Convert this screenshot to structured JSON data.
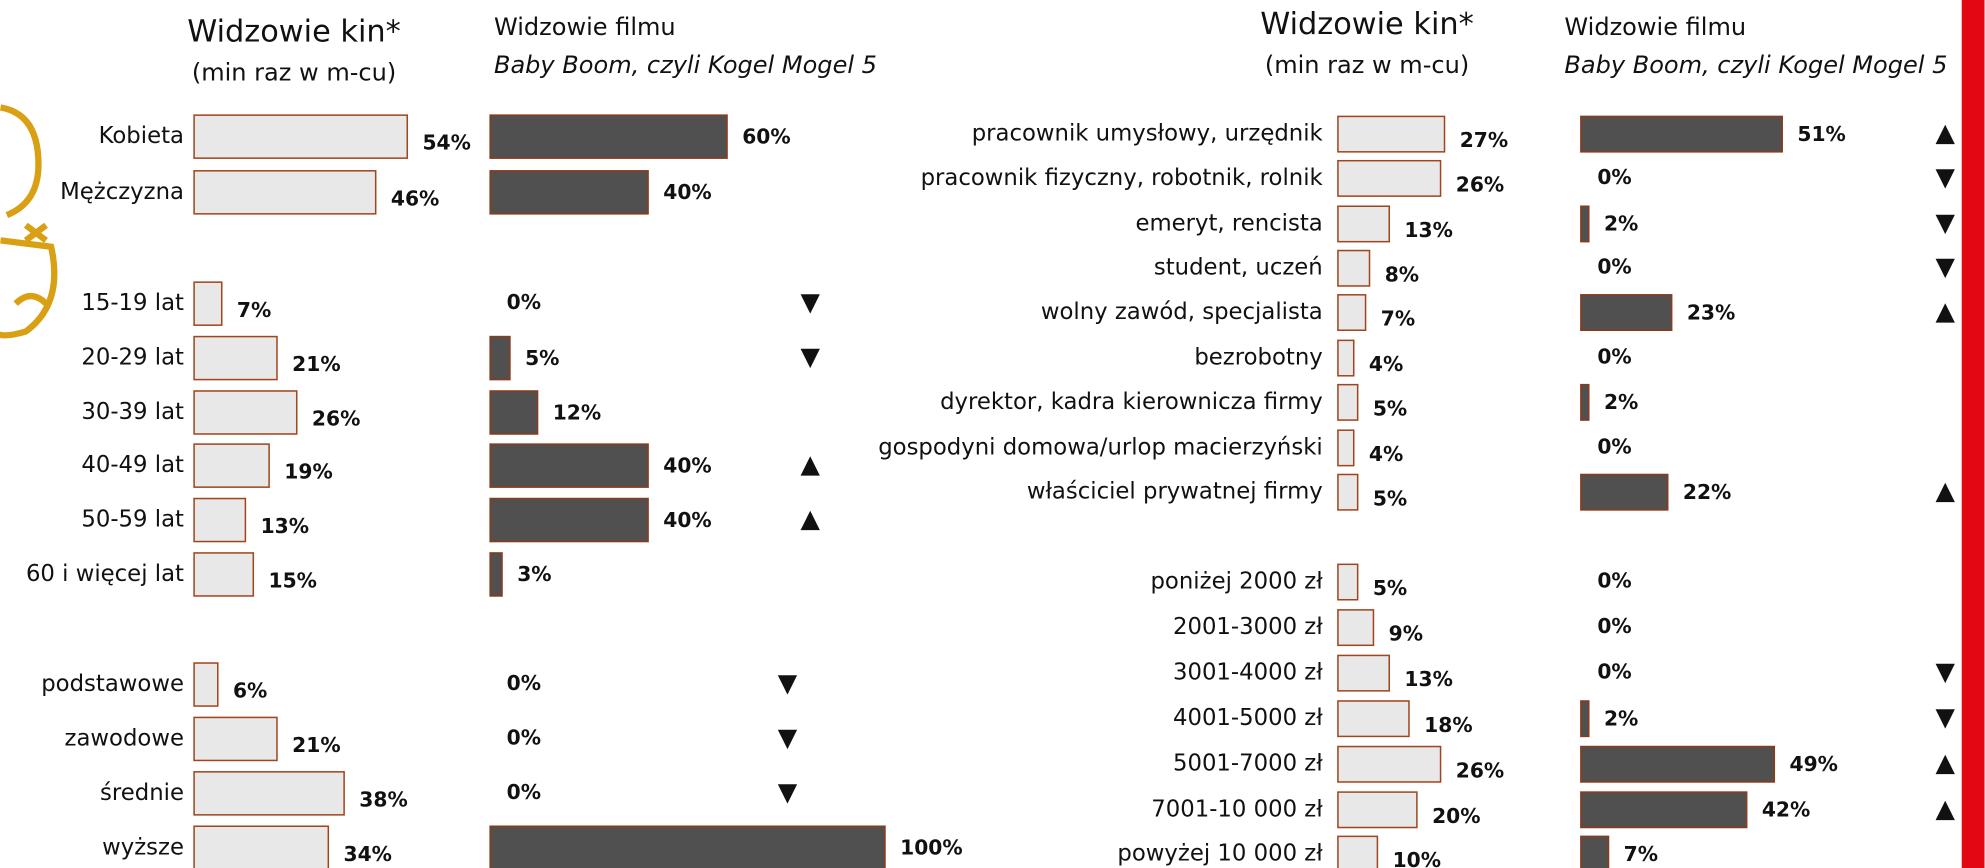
{
  "left": {
    "header": {
      "cinema_title": "Widzowie kin*",
      "cinema_subtitle": "(min raz w m-cu)",
      "film_title": "Widzowie filmu",
      "film_name": "Baby Boom, czyli Kogel Mogel 5"
    },
    "rows": [
      {
        "label": "Kobieta",
        "cinema": 54,
        "cinema_label": "54%",
        "film": 60,
        "film_label": "60%"
      },
      {
        "label": "Mężczyzna",
        "cinema": 46,
        "cinema_label": "46%",
        "film": 40,
        "film_label": "40%"
      },
      {
        "label": "15-19 lat",
        "cinema": 7,
        "cinema_label": "7%",
        "film": 0,
        "film_label": "0%",
        "arrow": "▼"
      },
      {
        "label": "20-29 lat",
        "cinema": 21,
        "cinema_label": "21%",
        "film": 5,
        "film_label": "5%",
        "arrow": "▼"
      },
      {
        "label": "30-39 lat",
        "cinema": 26,
        "cinema_label": "26%",
        "film": 12,
        "film_label": "12%"
      },
      {
        "label": "40-49 lat",
        "cinema": 19,
        "cinema_label": "19%",
        "film": 40,
        "film_label": "40%",
        "arrow": "▲"
      },
      {
        "label": "50-59 lat",
        "cinema": 13,
        "cinema_label": "13%",
        "film": 40,
        "film_label": "40%",
        "arrow": "▲"
      },
      {
        "label": "60 i więcej lat",
        "cinema": 15,
        "cinema_label": "15%",
        "film": 3,
        "film_label": "3%"
      },
      {
        "label": "podstawowe",
        "cinema": 6,
        "cinema_label": "6%",
        "film": 0,
        "film_label": "0%",
        "arrow": "▼"
      },
      {
        "label": "zawodowe",
        "cinema": 21,
        "cinema_label": "21%",
        "film": 0,
        "film_label": "0%",
        "arrow": "▼"
      },
      {
        "label": "średnie",
        "cinema": 38,
        "cinema_label": "38%",
        "film": 0,
        "film_label": "0%",
        "arrow": "▼"
      },
      {
        "label": "wyższe",
        "cinema": 34,
        "cinema_label": "34%",
        "film": 100,
        "film_label": "100%"
      }
    ]
  },
  "right": {
    "header": {
      "cinema_title": "Widzowie kin*",
      "cinema_subtitle": "(min raz w m-cu)",
      "film_title": "Widzowie filmu",
      "film_name": "Baby Boom, czyli Kogel Mogel 5"
    },
    "rows": [
      {
        "label": "pracownik umysłowy, urzędnik",
        "cinema": 27,
        "cinema_label": "27%",
        "film": 51,
        "film_label": "51%",
        "arrow": "▲"
      },
      {
        "label": "pracownik fizyczny, robotnik, rolnik",
        "cinema": 26,
        "cinema_label": "26%",
        "film": 0,
        "film_label": "0%",
        "arrow": "▼"
      },
      {
        "label": "emeryt, rencista",
        "cinema": 13,
        "cinema_label": "13%",
        "film": 2,
        "film_label": "2%",
        "arrow": "▼"
      },
      {
        "label": "student, uczeń",
        "cinema": 8,
        "cinema_label": "8%",
        "film": 0,
        "film_label": "0%",
        "arrow": "▼"
      },
      {
        "label": "wolny zawód, specjalista",
        "cinema": 7,
        "cinema_label": "7%",
        "film": 23,
        "film_label": "23%",
        "arrow": "▲"
      },
      {
        "label": "bezrobotny",
        "cinema": 4,
        "cinema_label": "4%",
        "film": 0,
        "film_label": "0%"
      },
      {
        "label": "dyrektor, kadra kierownicza firmy",
        "cinema": 5,
        "cinema_label": "5%",
        "film": 2,
        "film_label": "2%"
      },
      {
        "label": "gospodyni domowa/urlop macierzyński",
        "cinema": 4,
        "cinema_label": "4%",
        "film": 0,
        "film_label": "0%"
      },
      {
        "label": "właściciel prywatnej firmy",
        "cinema": 5,
        "cinema_label": "5%",
        "film": 22,
        "film_label": "22%",
        "arrow": "▲"
      },
      {
        "label": "poniżej 2000 zł",
        "cinema": 5,
        "cinema_label": "5%",
        "film": 0,
        "film_label": "0%"
      },
      {
        "label": "2001-3000 zł",
        "cinema": 9,
        "cinema_label": "9%",
        "film": 0,
        "film_label": "0%"
      },
      {
        "label": "3001-4000 zł",
        "cinema": 13,
        "cinema_label": "13%",
        "film": 0,
        "film_label": "0%",
        "arrow": "▼"
      },
      {
        "label": "4001-5000 zł",
        "cinema": 18,
        "cinema_label": "18%",
        "film": 2,
        "film_label": "2%",
        "arrow": "▼"
      },
      {
        "label": "5001-7000 zł",
        "cinema": 26,
        "cinema_label": "26%",
        "film": 49,
        "film_label": "49%",
        "arrow": "▲"
      },
      {
        "label": "7001-10 000 zł",
        "cinema": 20,
        "cinema_label": "20%",
        "film": 42,
        "film_label": "42%",
        "arrow": "▲"
      },
      {
        "label": "powyżej 10 000 zł",
        "cinema": 10,
        "cinema_label": "10%",
        "film": 7,
        "film_label": "7%"
      }
    ]
  }
}
